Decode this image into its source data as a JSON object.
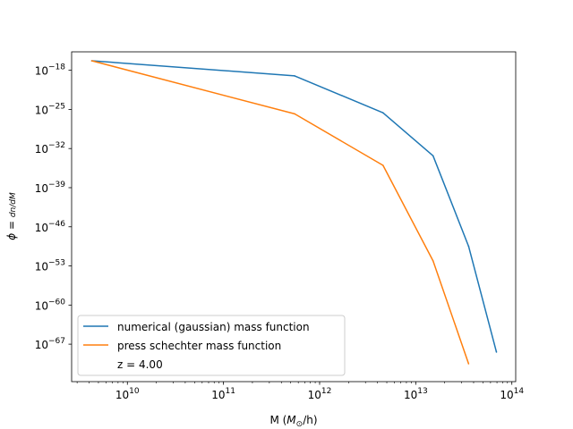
{
  "chart_data": {
    "type": "line",
    "title": "",
    "xlabel": "M ($M_\\odot$/h)",
    "ylabel": "$\\phi = \\frac{dn}{dM}$",
    "xscale": "log",
    "yscale": "log",
    "xlim_log10": [
      9.42,
      14.04
    ],
    "ylim_log10": [
      -73.7,
      -14.7
    ],
    "xticks_log10": [
      10,
      11,
      12,
      13,
      14
    ],
    "yticks_log10": [
      -18,
      -25,
      -32,
      -39,
      -46,
      -53,
      -60,
      -67
    ],
    "grid": false,
    "legend_position": "lower-left",
    "series": [
      {
        "name": "numerical (gaussian) mass function",
        "color": "#1f77b4",
        "x_log10": [
          9.63,
          11.74,
          12.66,
          13.18,
          13.55,
          13.84
        ],
        "y_log10": [
          -16.3,
          -19.0,
          -25.6,
          -33.3,
          -49.5,
          -68.4
        ]
      },
      {
        "name": "press schechter mass function",
        "color": "#ff7f0e",
        "x_log10": [
          9.63,
          11.74,
          12.66,
          13.18,
          13.55
        ],
        "y_log10": [
          -16.3,
          -25.8,
          -35.0,
          -52.1,
          -70.5
        ]
      }
    ],
    "annotation": "z = 4.00"
  }
}
